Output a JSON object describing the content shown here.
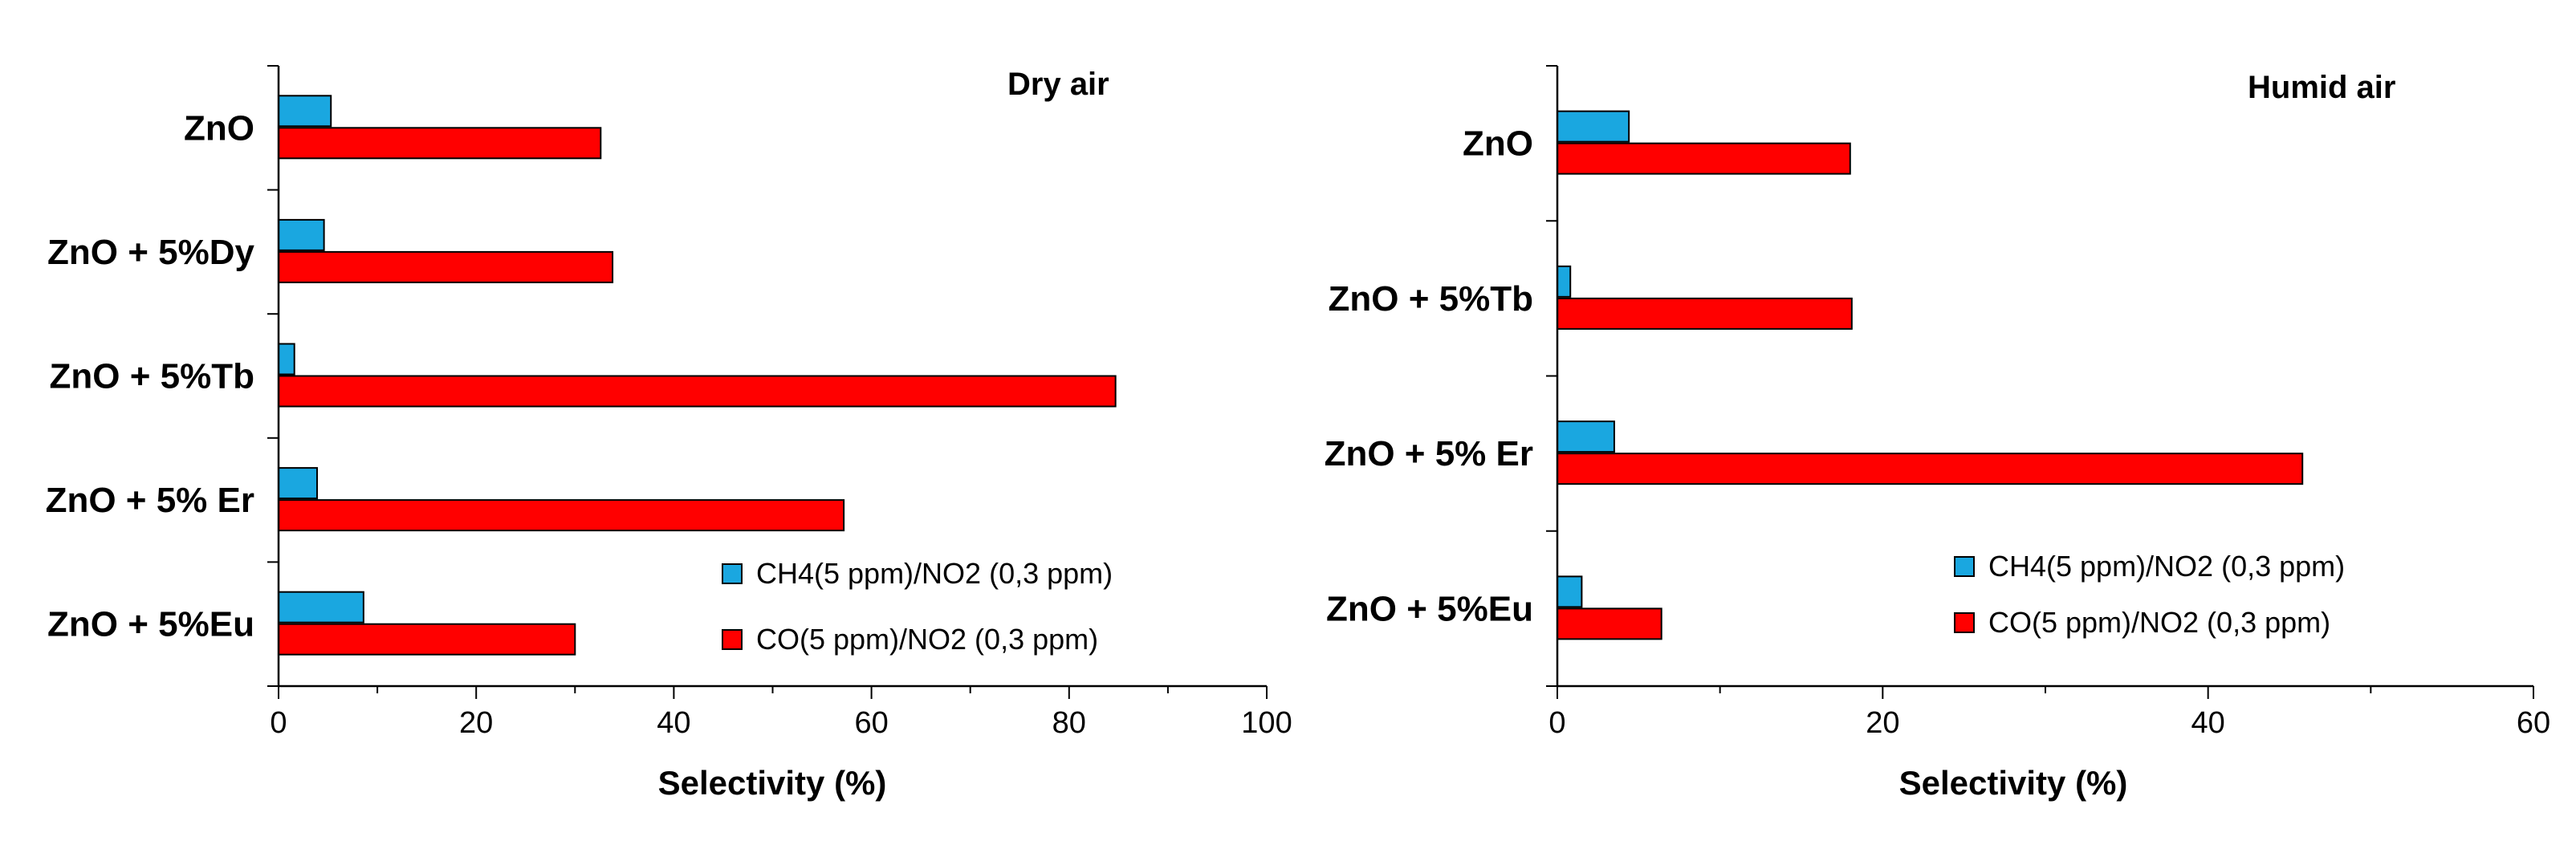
{
  "chart_data": [
    {
      "type": "bar",
      "orientation": "horizontal",
      "title": "Dry air",
      "xlabel": "Selectivity (%)",
      "ylabel": "",
      "xlim": [
        0,
        100
      ],
      "ticks": [
        "0",
        "20",
        "40",
        "60",
        "80",
        "100"
      ],
      "categories": [
        "ZnO",
        "ZnO + 5%Dy",
        "ZnO + 5%Tb",
        "ZnO + 5% Er",
        "ZnO + 5%Eu"
      ],
      "series": [
        {
          "name": "CH4(5 ppm)/NO2 (0,3 ppm)",
          "color": "#1aa7e0",
          "values": [
            5.3,
            4.6,
            1.6,
            3.9,
            8.6
          ]
        },
        {
          "name": "CO(5 ppm)/NO2 (0,3 ppm)",
          "color": "#ff0000",
          "values": [
            32.6,
            33.8,
            84.7,
            57.2,
            30.0
          ]
        }
      ],
      "legend_position": "bottom-right"
    },
    {
      "type": "bar",
      "orientation": "horizontal",
      "title": "Humid air",
      "xlabel": "Selectivity (%)",
      "ylabel": "",
      "xlim": [
        0,
        60
      ],
      "ticks": [
        "0",
        "20",
        "40",
        "60"
      ],
      "categories": [
        "ZnO",
        "ZnO + 5%Tb",
        "ZnO + 5% Er",
        "ZnO + 5%Eu"
      ],
      "series": [
        {
          "name": "CH4(5 ppm)/NO2 (0,3 ppm)",
          "color": "#1aa7e0",
          "values": [
            4.4,
            0.8,
            3.5,
            1.5
          ]
        },
        {
          "name": "CO(5 ppm)/NO2 (0,3 ppm)",
          "color": "#ff0000",
          "values": [
            18.0,
            18.1,
            45.8,
            6.4
          ]
        }
      ],
      "legend_position": "bottom-right"
    }
  ]
}
